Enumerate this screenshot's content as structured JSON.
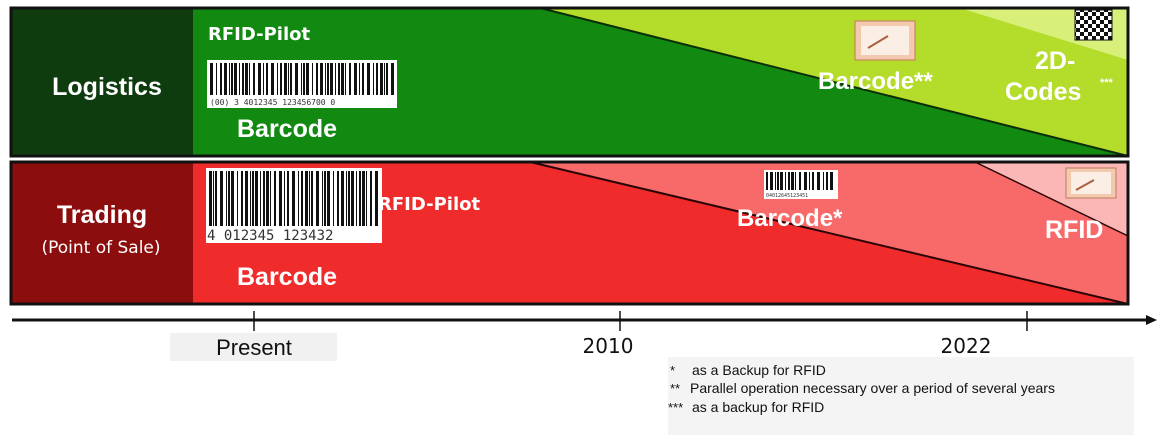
{
  "logistics": {
    "row_label": "Logistics",
    "pilot_label": "RFID-Pilot",
    "barcode_label": "Barcode",
    "barcode_digits": "(00) 3 4012345 123456700 0",
    "future_barcode_label": "Barcode**",
    "codes_label_line1": "2D-",
    "codes_label_line2": "Codes",
    "codes_mark": "***"
  },
  "trading": {
    "row_label_line1": "Trading",
    "row_label_line2": "(Point of Sale)",
    "pilot_label": "RFID-Pilot",
    "barcode_label": "Barcode",
    "barcode_digits": "4 012345 123432",
    "future_barcode_label": "Barcode*",
    "future_barcode_digits": "04012645123451",
    "rfid_label": "RFID"
  },
  "timeline": {
    "ticks": [
      "Present",
      "2010",
      "2022"
    ]
  },
  "notes": [
    {
      "mark": "*",
      "text": "as a Backup for RFID"
    },
    {
      "mark": "**",
      "text": "Parallel operation necessary over a period of several years"
    },
    {
      "mark": "***",
      "text": "as a backup for RFID"
    }
  ],
  "colors": {
    "logistics_label_bg": "#0e3c0e",
    "logistics_main": "#128a12",
    "logistics_light": "#b4dc2a",
    "logistics_lighter": "#d8f07a",
    "trading_label_bg": "#8c0d0d",
    "trading_main": "#ef2b2b",
    "trading_mid": "#f86a6a",
    "trading_light": "#fbb6b6"
  }
}
